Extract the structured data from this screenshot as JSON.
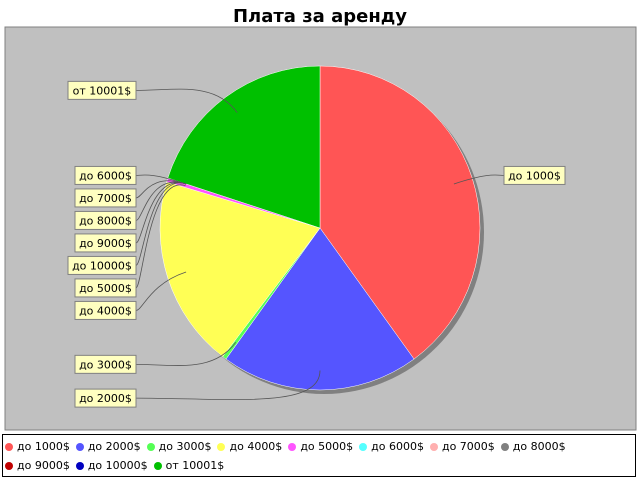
{
  "chart_data": {
    "type": "pie",
    "title": "Плата за аренду",
    "background": "#c0c0c0",
    "legend_position": "bottom",
    "slices": [
      {
        "label": "до 1000$",
        "value": 40,
        "color": "#ff5555"
      },
      {
        "label": "до 2000$",
        "value": 20,
        "color": "#5555ff"
      },
      {
        "label": "до 3000$",
        "value": 0.4,
        "color": "#55ff55"
      },
      {
        "label": "до 4000$",
        "value": 19.2,
        "color": "#ffff55"
      },
      {
        "label": "до 5000$",
        "value": 0.4,
        "color": "#ff55ff"
      },
      {
        "label": "до 6000$",
        "value": 0,
        "color": "#55ffff"
      },
      {
        "label": "до 7000$",
        "value": 0,
        "color": "#ffafaf"
      },
      {
        "label": "до 8000$",
        "value": 0,
        "color": "#808080"
      },
      {
        "label": "до 9000$",
        "value": 0,
        "color": "#c00000"
      },
      {
        "label": "до 10000$",
        "value": 0,
        "color": "#0000c0"
      },
      {
        "label": "от 10001$",
        "value": 20,
        "color": "#00c000"
      }
    ]
  }
}
